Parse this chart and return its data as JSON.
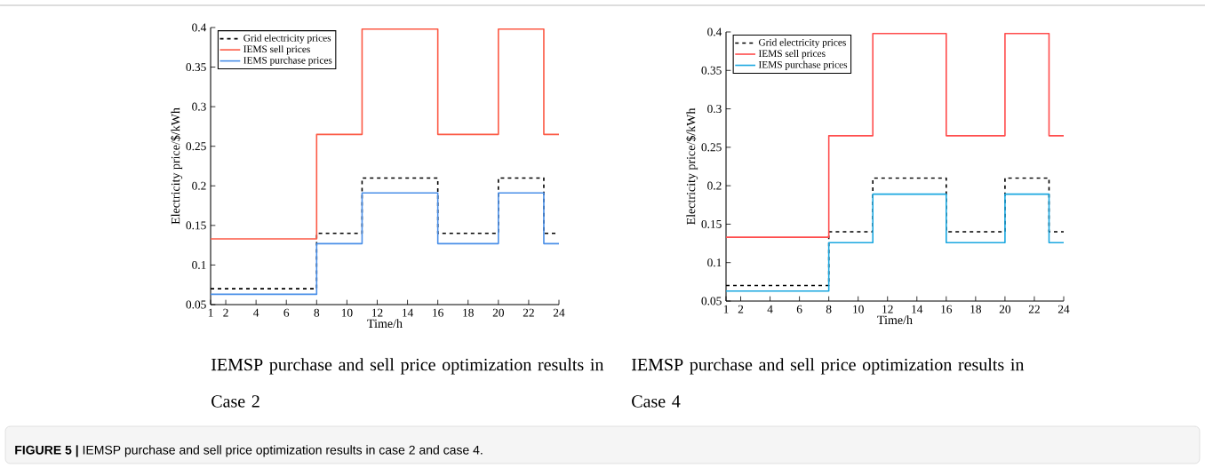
{
  "chart_data": [
    {
      "type": "step",
      "xlabel": "Time/h",
      "ylabel": "Electricity price/$/kWh",
      "x": [
        1,
        8,
        11,
        16,
        20,
        23,
        24
      ],
      "series": [
        {
          "name": "Grid electricity prices",
          "color": "#000000",
          "line_style": "dashed",
          "values": [
            0.07,
            0.14,
            0.21,
            0.14,
            0.21,
            0.14,
            0.14
          ]
        },
        {
          "name": "IEMS sell prices",
          "color": "#fc5a45",
          "line_style": "solid",
          "values": [
            0.133,
            0.265,
            0.398,
            0.265,
            0.398,
            0.265,
            0.265
          ]
        },
        {
          "name": "IEMS purchase prices",
          "color": "#4a8fe8",
          "line_style": "solid",
          "values": [
            0.063,
            0.127,
            0.191,
            0.127,
            0.191,
            0.127,
            0.127
          ]
        }
      ],
      "xlim": [
        1,
        24
      ],
      "ylim": [
        0.05,
        0.4
      ],
      "xticks": [
        1,
        2,
        4,
        6,
        8,
        10,
        12,
        14,
        16,
        18,
        20,
        22,
        24
      ],
      "yticks": [
        0.05,
        0.1,
        0.15,
        0.2,
        0.25,
        0.3,
        0.35,
        0.4
      ],
      "legend": "top left",
      "grid": false,
      "annotations": [
        "IEMSP purchase and sell price optimization results in Case 2",
        "**FIGURE 5 |** IEMSP purchase and sell price optimization results in case 2 and case 4."
      ]
    },
    {
      "type": "step",
      "xlabel": "Time/h",
      "ylabel": "Electricity price/$/kWh",
      "x": [
        1,
        8,
        11,
        16,
        20,
        23,
        24
      ],
      "series": [
        {
          "name": "Grid electricity prices",
          "color": "#000000",
          "line_style": "dashed",
          "values": [
            0.07,
            0.14,
            0.21,
            0.14,
            0.21,
            0.14,
            0.14
          ]
        },
        {
          "name": "IEMS sell prices",
          "color": "#ff4d4d",
          "line_style": "solid",
          "values": [
            0.133,
            0.265,
            0.398,
            0.265,
            0.398,
            0.265,
            0.265
          ]
        },
        {
          "name": "IEMS purchase prices",
          "color": "#1aa7e0",
          "line_style": "solid",
          "values": [
            0.063,
            0.126,
            0.189,
            0.126,
            0.189,
            0.126,
            0.126
          ]
        }
      ],
      "xlim": [
        1,
        24
      ],
      "ylim": [
        0.05,
        0.4
      ],
      "xticks": [
        1,
        2,
        4,
        6,
        8,
        10,
        12,
        14,
        16,
        18,
        20,
        22,
        24
      ],
      "yticks": [
        0.05,
        0.1,
        0.15,
        0.2,
        0.25,
        0.3,
        0.35,
        0.4
      ],
      "legend": "top left",
      "grid": false,
      "annotations": [
        "IEMSP purchase and sell price optimization results in Case 4"
      ]
    }
  ]
}
